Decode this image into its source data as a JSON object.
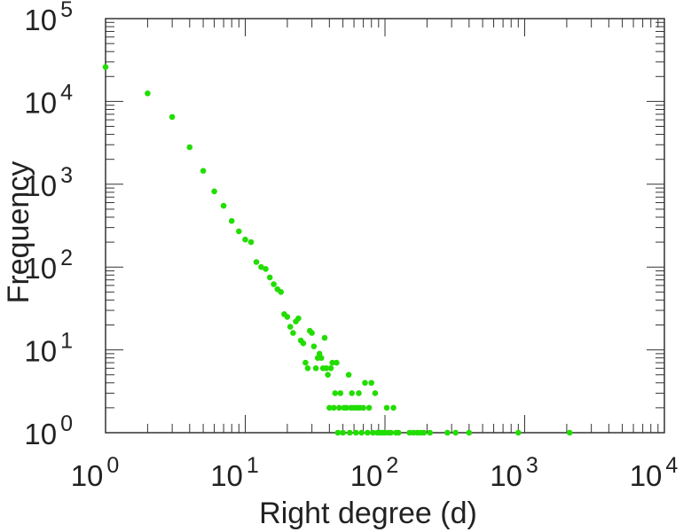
{
  "chart_data": {
    "type": "scatter",
    "xlabel": "Right degree (d)",
    "ylabel": "Frequency",
    "x_scale": "log",
    "y_scale": "log",
    "xlim": [
      1,
      10000
    ],
    "ylim": [
      1,
      100000
    ],
    "x_ticks": [
      {
        "base": "10",
        "exp": "0"
      },
      {
        "base": "10",
        "exp": "1"
      },
      {
        "base": "10",
        "exp": "2"
      },
      {
        "base": "10",
        "exp": "3"
      },
      {
        "base": "10",
        "exp": "4"
      }
    ],
    "y_ticks": [
      {
        "base": "10",
        "exp": "0"
      },
      {
        "base": "10",
        "exp": "1"
      },
      {
        "base": "10",
        "exp": "2"
      },
      {
        "base": "10",
        "exp": "3"
      },
      {
        "base": "10",
        "exp": "4"
      },
      {
        "base": "10",
        "exp": "5"
      }
    ],
    "grid": false,
    "marker_color": "#22dd00",
    "points": [
      [
        1,
        26000
      ],
      [
        2,
        12500
      ],
      [
        3,
        6500
      ],
      [
        4,
        2800
      ],
      [
        5,
        1450
      ],
      [
        6,
        820
      ],
      [
        7,
        550
      ],
      [
        8,
        360
      ],
      [
        9,
        270
      ],
      [
        10,
        215
      ],
      [
        11,
        200
      ],
      [
        12,
        115
      ],
      [
        13,
        100
      ],
      [
        14,
        95
      ],
      [
        15,
        75
      ],
      [
        16,
        62
      ],
      [
        17,
        54
      ],
      [
        18,
        50
      ],
      [
        19,
        27
      ],
      [
        20,
        25
      ],
      [
        21,
        19
      ],
      [
        22,
        16
      ],
      [
        23,
        22
      ],
      [
        24,
        24
      ],
      [
        25,
        13
      ],
      [
        26,
        12
      ],
      [
        27,
        7
      ],
      [
        28,
        6
      ],
      [
        29,
        17
      ],
      [
        30,
        16
      ],
      [
        31,
        11
      ],
      [
        32,
        6
      ],
      [
        33,
        8
      ],
      [
        34,
        9
      ],
      [
        35,
        8
      ],
      [
        36,
        6
      ],
      [
        37,
        14
      ],
      [
        38,
        6
      ],
      [
        39,
        5
      ],
      [
        40,
        2
      ],
      [
        41,
        6
      ],
      [
        42,
        7
      ],
      [
        43,
        2
      ],
      [
        44,
        3
      ],
      [
        45,
        7
      ],
      [
        46,
        1
      ],
      [
        47,
        2
      ],
      [
        48,
        3
      ],
      [
        50,
        1
      ],
      [
        51,
        2
      ],
      [
        53,
        2
      ],
      [
        55,
        5
      ],
      [
        56,
        1
      ],
      [
        57,
        2
      ],
      [
        58,
        3
      ],
      [
        60,
        2
      ],
      [
        62,
        1
      ],
      [
        63,
        2
      ],
      [
        65,
        3
      ],
      [
        66,
        2
      ],
      [
        68,
        1
      ],
      [
        70,
        2
      ],
      [
        72,
        4
      ],
      [
        75,
        1
      ],
      [
        77,
        2
      ],
      [
        80,
        4
      ],
      [
        82,
        1
      ],
      [
        85,
        3
      ],
      [
        88,
        1
      ],
      [
        92,
        1
      ],
      [
        96,
        1
      ],
      [
        100,
        1
      ],
      [
        103,
        2
      ],
      [
        106,
        1
      ],
      [
        110,
        1
      ],
      [
        115,
        2
      ],
      [
        120,
        1
      ],
      [
        125,
        1
      ],
      [
        150,
        1
      ],
      [
        160,
        1
      ],
      [
        170,
        1
      ],
      [
        180,
        1
      ],
      [
        190,
        1
      ],
      [
        210,
        1
      ],
      [
        280,
        1
      ],
      [
        320,
        1
      ],
      [
        400,
        1
      ],
      [
        900,
        1
      ],
      [
        2100,
        1
      ]
    ]
  }
}
